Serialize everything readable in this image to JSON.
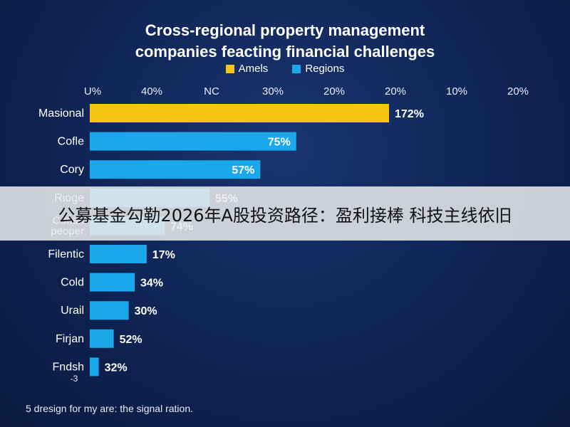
{
  "chart_data": {
    "type": "bar",
    "orientation": "horizontal",
    "title": "Cross-regional property management companies feacting financial challenges",
    "title_lines": [
      "Cross-regional property management",
      "companies feacting financial challenges"
    ],
    "legend": [
      {
        "label": "Amels",
        "color": "#f8c414"
      },
      {
        "label": "Regions",
        "color": "#1aa8ea"
      }
    ],
    "x_tick_labels": [
      "U%",
      "40%",
      "NC",
      "30%",
      "20%",
      "20%",
      "10%",
      "20%"
    ],
    "categories": [
      "Masional",
      "Cofle",
      "Cory",
      "Rioge",
      "Conan peoper",
      "Filentic",
      "Cold",
      "Urail",
      "Firjan",
      "Fndsh"
    ],
    "values": [
      172,
      75,
      57,
      55,
      74,
      17,
      34,
      30,
      52,
      32
    ],
    "value_labels": [
      "172%",
      "75%",
      "57%",
      "55%",
      "74%",
      "17%",
      "34%",
      "30%",
      "52%",
      "32%"
    ],
    "bar_fraction": [
      1.0,
      0.69,
      0.57,
      0.4,
      0.25,
      0.19,
      0.15,
      0.13,
      0.08,
      0.03
    ],
    "bar_colors": [
      "#f8c414",
      "#1aa8ea",
      "#1aa8ea",
      "#1aa8ea",
      "#1aa8ea",
      "#1aa8ea",
      "#1aa8ea",
      "#1aa8ea",
      "#1aa8ea",
      "#1aa8ea"
    ],
    "extra_label": "-3",
    "grid": false,
    "legend_position": "top-center"
  },
  "overlay_text": "公募基金勾勒2026年A股投资路径：盈利接棒 科技主线依旧",
  "footnote": "5 dresign for my are: the signal ration."
}
